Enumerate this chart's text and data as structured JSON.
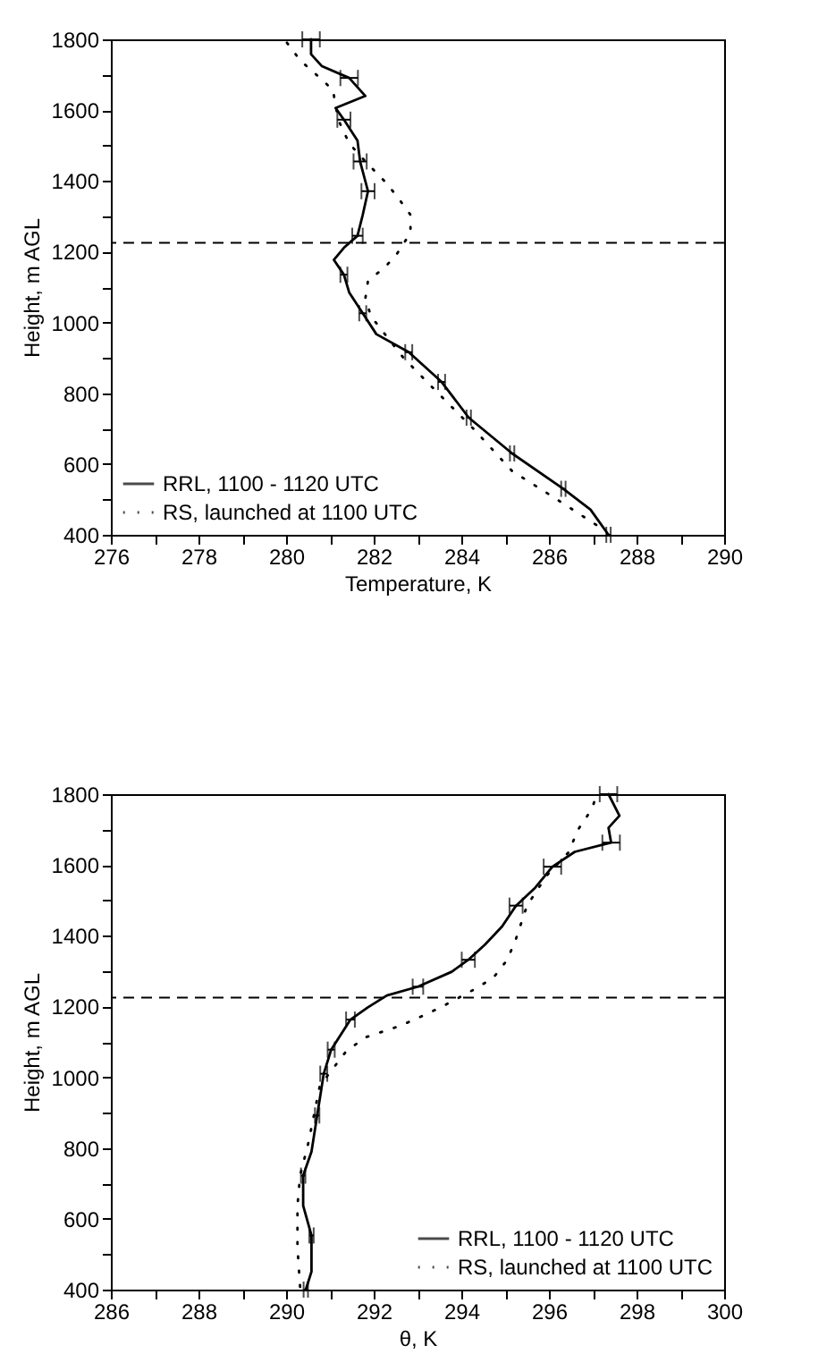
{
  "chart_data": [
    {
      "type": "line",
      "xlabel": "Temperature, K",
      "ylabel": "Height, m AGL",
      "xlim": [
        276,
        290
      ],
      "ylim": [
        400,
        1800
      ],
      "xticks": [
        276,
        {
          "value": 277,
          "label": null
        },
        278,
        {
          "value": 279,
          "label": null
        },
        280,
        {
          "value": 281,
          "label": null
        },
        282,
        {
          "value": 283,
          "label": null
        },
        284,
        {
          "value": 285,
          "label": null
        },
        286,
        {
          "value": 287,
          "label": null
        },
        288,
        {
          "value": 289,
          "label": null
        },
        290
      ],
      "yticks": [
        400,
        {
          "value": 500,
          "label": null
        },
        600,
        {
          "value": 700,
          "label": null
        },
        800,
        {
          "value": 900,
          "label": null
        },
        1000,
        {
          "value": 1100,
          "label": null
        },
        1200,
        {
          "value": 1300,
          "label": null
        },
        1400,
        {
          "value": 1500,
          "label": null
        },
        1600,
        {
          "value": 1700,
          "label": null
        },
        1800
      ],
      "legend": "bottom left",
      "grid": false,
      "ref_lines": [
        {
          "axis": "y",
          "value": 1225,
          "line_style": "dashed",
          "color": "#000000"
        }
      ],
      "series": [
        {
          "name": "RRL, 1100 - 1120 UTC",
          "color": "#000000",
          "line_style": "solid",
          "x": [
            287.36,
            286.95,
            286.33,
            285.16,
            284.17,
            283.55,
            282.8,
            282.06,
            281.75,
            281.44,
            281.32,
            281.09,
            281.32,
            281.63,
            281.75,
            281.87,
            281.69,
            281.63,
            281.32,
            281.13,
            281.81,
            281.44,
            280.82,
            280.57,
            280.57
          ],
          "values": [
            400,
            471,
            530,
            630,
            731,
            832,
            916,
            967,
            1026,
            1085,
            1135,
            1177,
            1211,
            1245,
            1304,
            1371,
            1455,
            1514,
            1573,
            1606,
            1640,
            1691,
            1724,
            1758,
            1800
          ],
          "xerrors": [
            0.05,
            null,
            0.05,
            0.05,
            0.05,
            0.08,
            0.08,
            null,
            0.08,
            null,
            0.08,
            null,
            null,
            0.12,
            null,
            0.15,
            0.15,
            null,
            0.15,
            null,
            null,
            0.2,
            null,
            null,
            0.2
          ]
        },
        {
          "name": "RS, launched at 1100 UTC",
          "color": "#000000",
          "line_style": "dotted",
          "x": [
            287.08,
            286.02,
            285.16,
            284.29,
            283.48,
            282.68,
            281.94,
            281.81,
            281.87,
            282.25,
            282.53,
            282.84,
            282.84,
            282.53,
            282.25,
            281.81,
            281.44,
            281.19,
            281.07,
            280.7,
            280.32,
            280.01
          ],
          "values": [
            428,
            513,
            580,
            698,
            799,
            900,
            1017,
            1068,
            1118,
            1155,
            1194,
            1253,
            1304,
            1357,
            1399,
            1455,
            1506,
            1573,
            1657,
            1699,
            1741,
            1792
          ]
        }
      ]
    },
    {
      "type": "line",
      "xlabel": "θ, K",
      "ylabel": "Height, m AGL",
      "xlim": [
        286,
        300
      ],
      "ylim": [
        400,
        1800
      ],
      "xticks": [
        286,
        {
          "value": 287,
          "label": null
        },
        288,
        {
          "value": 289,
          "label": null
        },
        290,
        {
          "value": 291,
          "label": null
        },
        292,
        {
          "value": 293,
          "label": null
        },
        294,
        {
          "value": 295,
          "label": null
        },
        296,
        {
          "value": 297,
          "label": null
        },
        298,
        {
          "value": 299,
          "label": null
        },
        300
      ],
      "yticks": [
        400,
        {
          "value": 500,
          "label": null
        },
        600,
        {
          "value": 700,
          "label": null
        },
        800,
        {
          "value": 900,
          "label": null
        },
        1000,
        {
          "value": 1100,
          "label": null
        },
        1200,
        {
          "value": 1300,
          "label": null
        },
        1400,
        {
          "value": 1500,
          "label": null
        },
        1600,
        {
          "value": 1700,
          "label": null
        },
        1800
      ],
      "legend": "bottom right",
      "grid": false,
      "ref_lines": [
        {
          "axis": "y",
          "value": 1225,
          "line_style": "dashed",
          "color": "#000000"
        }
      ],
      "series": [
        {
          "name": "RRL, 1100 - 1120 UTC",
          "color": "#000000",
          "line_style": "solid",
          "x": [
            290.45,
            290.58,
            290.58,
            290.39,
            290.39,
            290.58,
            290.71,
            290.86,
            291.03,
            291.47,
            291.86,
            292.3,
            293.01,
            293.78,
            294.16,
            294.54,
            294.93,
            295.25,
            295.69,
            296.08,
            296.59,
            297.42,
            297.36,
            297.61,
            297.36
          ],
          "values": [
            400,
            451,
            553,
            637,
            722,
            790,
            892,
            1010,
            1078,
            1163,
            1197,
            1231,
            1256,
            1298,
            1332,
            1375,
            1426,
            1485,
            1536,
            1595,
            1637,
            1663,
            1705,
            1739,
            1800
          ],
          "xerrors": [
            0.05,
            null,
            0.05,
            null,
            0.05,
            null,
            0.05,
            0.08,
            0.08,
            0.1,
            null,
            null,
            0.12,
            null,
            0.15,
            null,
            null,
            0.15,
            null,
            0.2,
            null,
            0.2,
            null,
            null,
            0.2
          ]
        },
        {
          "name": "RS, launched at 1100 UTC",
          "color": "#000000",
          "line_style": "dotted",
          "x": [
            290.32,
            290.26,
            290.26,
            290.32,
            290.51,
            290.77,
            291.35,
            291.79,
            292.62,
            293.07,
            293.52,
            293.9,
            294.29,
            294.73,
            295.05,
            295.25,
            295.5,
            295.95,
            296.46,
            296.65,
            296.97,
            297.1
          ],
          "values": [
            408,
            519,
            637,
            722,
            815,
            976,
            1070,
            1112,
            1146,
            1171,
            1197,
            1222,
            1248,
            1281,
            1332,
            1392,
            1485,
            1570,
            1637,
            1697,
            1756,
            1800
          ]
        }
      ]
    }
  ]
}
